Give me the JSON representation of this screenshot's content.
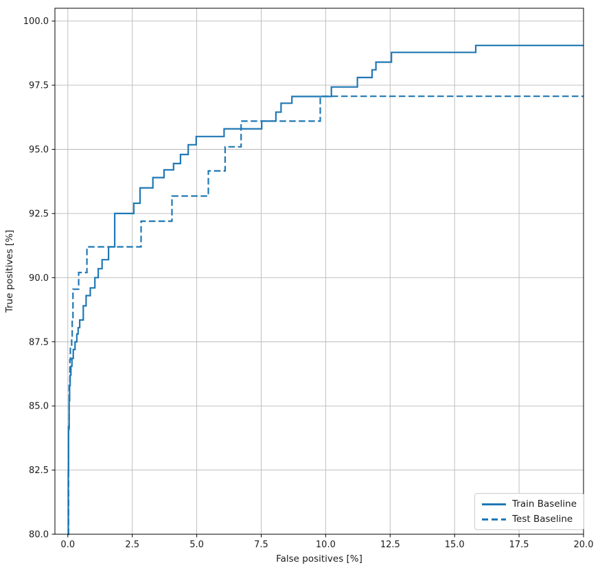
{
  "chart_data": {
    "type": "line",
    "subtype": "step",
    "title": "",
    "xlabel": "False positives [%]",
    "ylabel": "True positives [%]",
    "xlim": [
      -0.5,
      20
    ],
    "ylim": [
      80,
      100.5
    ],
    "xticks": [
      0,
      2.5,
      5,
      7.5,
      10,
      12.5,
      15,
      17.5,
      20
    ],
    "xtick_labels": [
      "0.0",
      "2.5",
      "5.0",
      "7.5",
      "10.0",
      "12.5",
      "15.0",
      "17.5",
      "20.0"
    ],
    "yticks": [
      80,
      82.5,
      85,
      87.5,
      90,
      92.5,
      95,
      97.5,
      100
    ],
    "ytick_labels": [
      "80.0",
      "82.5",
      "85.0",
      "87.5",
      "90.0",
      "92.5",
      "95.0",
      "97.5",
      "100.0"
    ],
    "grid": true,
    "legend": {
      "position": "lower right",
      "entries": [
        "Train Baseline",
        "Test Baseline"
      ]
    },
    "colors": {
      "line": "#1f77b4",
      "grid": "#b8b8b8",
      "spine": "#000000",
      "background": "#ffffff"
    },
    "series": [
      {
        "name": "Train Baseline",
        "style": "solid",
        "step": "post",
        "points": [
          [
            0.0,
            80.0
          ],
          [
            0.02,
            82.5
          ],
          [
            0.03,
            84.2
          ],
          [
            0.05,
            85.2
          ],
          [
            0.07,
            85.8
          ],
          [
            0.09,
            86.2
          ],
          [
            0.12,
            86.55
          ],
          [
            0.16,
            86.85
          ],
          [
            0.21,
            87.2
          ],
          [
            0.28,
            87.5
          ],
          [
            0.35,
            87.8
          ],
          [
            0.4,
            88.05
          ],
          [
            0.46,
            88.35
          ],
          [
            0.6,
            88.9
          ],
          [
            0.71,
            89.3
          ],
          [
            0.87,
            89.6
          ],
          [
            1.05,
            90.0
          ],
          [
            1.18,
            90.35
          ],
          [
            1.33,
            90.7
          ],
          [
            1.58,
            91.2
          ],
          [
            1.82,
            92.5
          ],
          [
            2.56,
            92.9
          ],
          [
            2.8,
            93.5
          ],
          [
            3.3,
            93.9
          ],
          [
            3.73,
            94.2
          ],
          [
            4.1,
            94.45
          ],
          [
            4.37,
            94.8
          ],
          [
            4.67,
            95.18
          ],
          [
            4.98,
            95.5
          ],
          [
            6.06,
            95.8
          ],
          [
            7.52,
            96.1
          ],
          [
            8.07,
            96.45
          ],
          [
            8.27,
            96.8
          ],
          [
            8.69,
            97.06
          ],
          [
            10.22,
            97.43
          ],
          [
            11.23,
            97.8
          ],
          [
            11.8,
            98.1
          ],
          [
            11.95,
            98.4
          ],
          [
            12.55,
            98.78
          ],
          [
            15.82,
            99.05
          ],
          [
            20.0,
            99.05
          ]
        ]
      },
      {
        "name": "Test Baseline",
        "style": "dashed",
        "step": "post",
        "points": [
          [
            0.0,
            80.0
          ],
          [
            0.03,
            84.0
          ],
          [
            0.05,
            85.8
          ],
          [
            0.08,
            86.8
          ],
          [
            0.1,
            87.3
          ],
          [
            0.15,
            87.6
          ],
          [
            0.17,
            88.4
          ],
          [
            0.2,
            89.55
          ],
          [
            0.42,
            90.2
          ],
          [
            0.74,
            91.2
          ],
          [
            2.84,
            92.2
          ],
          [
            4.04,
            93.18
          ],
          [
            5.45,
            94.16
          ],
          [
            6.1,
            95.1
          ],
          [
            6.72,
            96.1
          ],
          [
            9.79,
            97.07
          ],
          [
            20.0,
            97.07
          ]
        ]
      }
    ]
  }
}
